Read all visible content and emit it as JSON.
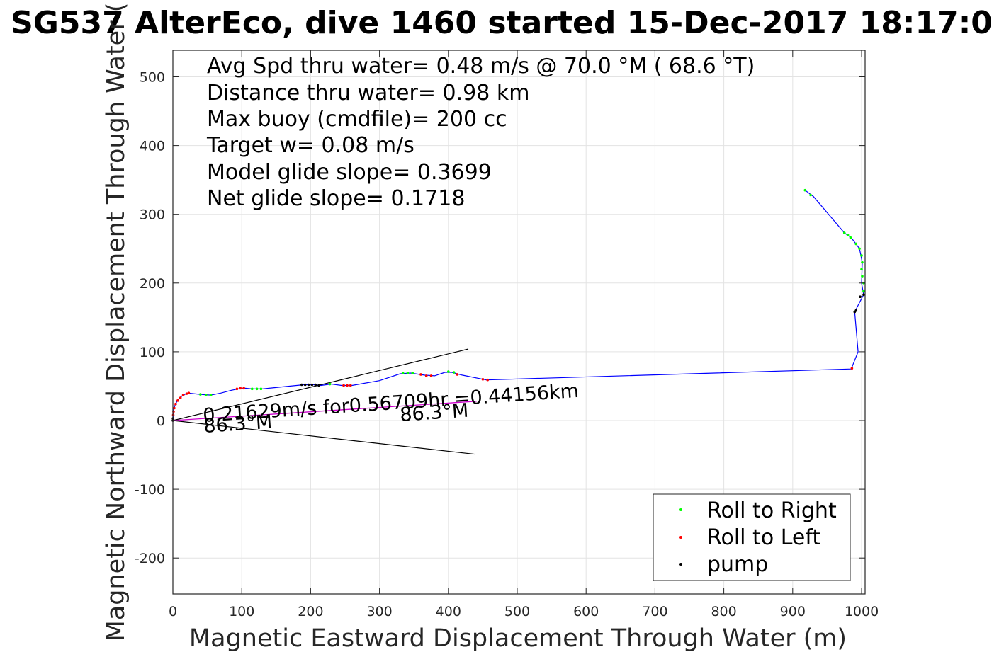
{
  "chart_data": {
    "type": "scatter",
    "title": "SG537 AlterEco, dive 1460 started 15-Dec-2017 18:17:0",
    "xlabel": "Magnetic Eastward Displacement Through Water (m)",
    "ylabel": "Magnetic Northward Displacement Through Water (",
    "xlim": [
      0,
      1000
    ],
    "ylim": [
      -250,
      540
    ],
    "xticks": [
      0,
      100,
      200,
      300,
      400,
      500,
      600,
      700,
      800,
      900,
      1000
    ],
    "yticks": [
      -200,
      -100,
      0,
      100,
      200,
      300,
      400,
      500
    ],
    "grid": true,
    "legend_position": "bottom-right",
    "stats_text": [
      "Avg Spd thru water=  0.48 m/s @  70.0 °M ( 68.6 °T)",
      "Distance thru water=  0.98 km",
      "Max buoy (cmdfile)= 200 cc",
      "Target w= 0.08 m/s",
      "Model glide slope= 0.3699",
      "Net glide slope= 0.1718"
    ],
    "annotations": {
      "speed_text": "0.21629m/s for0.56709hr =0.44156km",
      "heading_label_1": "86.3°M",
      "heading_label_2": "86.3°M"
    },
    "colors": {
      "track": "#0000ff",
      "roll_right": "#00ff00",
      "roll_left": "#ff0000",
      "pump": "#000000",
      "current_vector": "#cc00cc",
      "cone": "#000000",
      "grid": "#e3e3e3"
    },
    "track": [
      [
        0,
        0
      ],
      [
        0.5,
        8
      ],
      [
        1,
        15
      ],
      [
        3,
        22
      ],
      [
        6,
        28
      ],
      [
        10,
        33
      ],
      [
        15,
        37
      ],
      [
        22,
        40
      ],
      [
        30,
        39
      ],
      [
        40,
        38
      ],
      [
        55,
        37
      ],
      [
        70,
        40
      ],
      [
        85,
        44
      ],
      [
        95,
        46
      ],
      [
        105,
        47
      ],
      [
        115,
        46
      ],
      [
        130,
        46
      ],
      [
        160,
        49
      ],
      [
        190,
        52
      ],
      [
        205,
        52
      ],
      [
        215,
        51
      ],
      [
        230,
        53
      ],
      [
        245,
        51
      ],
      [
        260,
        51
      ],
      [
        300,
        58
      ],
      [
        330,
        68
      ],
      [
        345,
        69
      ],
      [
        365,
        66
      ],
      [
        380,
        65
      ],
      [
        395,
        70
      ],
      [
        405,
        70
      ],
      [
        420,
        66
      ],
      [
        455,
        59
      ],
      [
        985,
        75
      ],
      [
        995,
        100
      ],
      [
        990,
        158
      ],
      [
        1003,
        183
      ],
      [
        1000,
        200
      ],
      [
        1001,
        230
      ],
      [
        997,
        250
      ],
      [
        985,
        266
      ],
      [
        975,
        273
      ],
      [
        930,
        326
      ],
      [
        918,
        335
      ]
    ],
    "series": [
      {
        "name": "Roll to Right",
        "points": [
          [
            40,
            38
          ],
          [
            48,
            37
          ],
          [
            55,
            37
          ],
          [
            115,
            46
          ],
          [
            122,
            46
          ],
          [
            128,
            46
          ],
          [
            228,
            53
          ],
          [
            334,
            69
          ],
          [
            341,
            69
          ],
          [
            348,
            69
          ],
          [
            400,
            71
          ],
          [
            408,
            70
          ],
          [
            918,
            335
          ],
          [
            926,
            328
          ],
          [
            975,
            273
          ],
          [
            980,
            270
          ],
          [
            984,
            266
          ],
          [
            992,
            257
          ],
          [
            997,
            250
          ],
          [
            1000,
            240
          ],
          [
            1001,
            230
          ],
          [
            1000,
            220
          ],
          [
            1001,
            210
          ],
          [
            1003,
            200
          ],
          [
            1003,
            188
          ]
        ]
      },
      {
        "name": "Roll to Left",
        "points": [
          [
            0.5,
            8
          ],
          [
            1,
            13
          ],
          [
            2,
            18
          ],
          [
            4,
            24
          ],
          [
            7,
            29
          ],
          [
            11,
            33
          ],
          [
            15,
            37
          ],
          [
            20,
            39
          ],
          [
            23,
            40
          ],
          [
            93,
            46
          ],
          [
            98,
            47
          ],
          [
            103,
            47
          ],
          [
            248,
            51
          ],
          [
            253,
            51
          ],
          [
            258,
            51
          ],
          [
            360,
            67
          ],
          [
            368,
            65
          ],
          [
            375,
            65
          ],
          [
            413,
            67
          ],
          [
            450,
            60
          ],
          [
            457,
            59
          ],
          [
            986,
            76
          ]
        ]
      },
      {
        "name": "pump",
        "points": [
          [
            0,
            0
          ],
          [
            0.2,
            3
          ],
          [
            187,
            52
          ],
          [
            192,
            52
          ],
          [
            197,
            52
          ],
          [
            202,
            52
          ],
          [
            207,
            52
          ],
          [
            212,
            51
          ],
          [
            990,
            158
          ],
          [
            992,
            160
          ],
          [
            1003,
            183
          ],
          [
            998,
            180
          ]
        ]
      }
    ],
    "current_vector": [
      [
        0,
        0
      ],
      [
        441,
        28
      ]
    ],
    "cone_lines": [
      [
        [
          0,
          0
        ],
        [
          429,
          104
        ]
      ],
      [
        [
          0,
          0
        ],
        [
          438,
          -49
        ]
      ]
    ]
  }
}
